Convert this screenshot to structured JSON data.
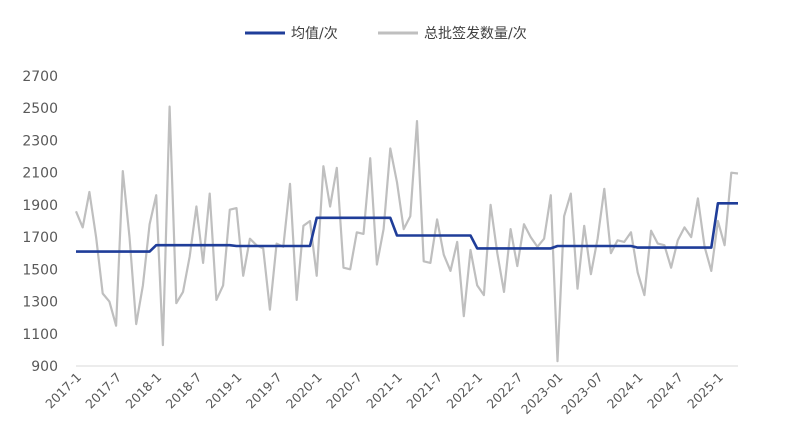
{
  "chart_data": {
    "type": "line",
    "title": "",
    "xlabel": "",
    "ylabel": "",
    "ylim": [
      900,
      2700
    ],
    "yticks": [
      900,
      1100,
      1300,
      1500,
      1700,
      1900,
      2100,
      2300,
      2500,
      2700
    ],
    "grid": false,
    "legend_position": "top-center",
    "xtick_labels": [
      "2017-1",
      "2017-7",
      "2018-1",
      "2018-7",
      "2019-1",
      "2019-7",
      "2020-1",
      "2020-7",
      "2021-1",
      "2021-7",
      "2022-1",
      "2022-7",
      "2023-01",
      "2023-07",
      "2024-1",
      "2024-7",
      "2025-1"
    ],
    "xtick_interval_months": 6,
    "start_month": "2017-1",
    "series": [
      {
        "name": "均值/次",
        "color": "#1f3d99",
        "values": [
          1610,
          1610,
          1610,
          1610,
          1610,
          1610,
          1610,
          1610,
          1610,
          1610,
          1610,
          1610,
          1650,
          1650,
          1650,
          1650,
          1650,
          1650,
          1650,
          1650,
          1650,
          1650,
          1650,
          1650,
          1645,
          1645,
          1645,
          1645,
          1645,
          1645,
          1645,
          1645,
          1645,
          1645,
          1645,
          1645,
          1820,
          1820,
          1820,
          1820,
          1820,
          1820,
          1820,
          1820,
          1820,
          1820,
          1820,
          1820,
          1710,
          1710,
          1710,
          1710,
          1710,
          1710,
          1710,
          1710,
          1710,
          1710,
          1710,
          1710,
          1630,
          1630,
          1630,
          1630,
          1630,
          1630,
          1630,
          1630,
          1630,
          1630,
          1630,
          1630,
          1645,
          1645,
          1645,
          1645,
          1645,
          1645,
          1645,
          1645,
          1645,
          1645,
          1645,
          1645,
          1635,
          1635,
          1635,
          1635,
          1635,
          1635,
          1635,
          1635,
          1635,
          1635,
          1635,
          1635,
          1910,
          1910,
          1910,
          1910
        ]
      },
      {
        "name": "总批签发数量/次",
        "color": "#bfbfbf",
        "values": [
          1860,
          1760,
          1980,
          1700,
          1350,
          1300,
          1150,
          2110,
          1700,
          1160,
          1400,
          1780,
          1960,
          1030,
          2510,
          1290,
          1360,
          1580,
          1890,
          1540,
          1970,
          1310,
          1400,
          1870,
          1880,
          1460,
          1690,
          1650,
          1630,
          1250,
          1660,
          1640,
          2030,
          1310,
          1770,
          1800,
          1460,
          2140,
          1890,
          2130,
          1510,
          1500,
          1730,
          1720,
          2190,
          1530,
          1750,
          2250,
          2040,
          1750,
          1830,
          2420,
          1550,
          1540,
          1810,
          1590,
          1490,
          1670,
          1210,
          1620,
          1400,
          1340,
          1900,
          1600,
          1360,
          1750,
          1520,
          1780,
          1700,
          1640,
          1690,
          1960,
          930,
          1830,
          1970,
          1380,
          1770,
          1470,
          1690,
          2000,
          1600,
          1680,
          1670,
          1730,
          1480,
          1340,
          1740,
          1660,
          1650,
          1510,
          1680,
          1760,
          1700,
          1940,
          1640,
          1490,
          1800,
          1650,
          2100,
          2095
        ]
      }
    ]
  }
}
